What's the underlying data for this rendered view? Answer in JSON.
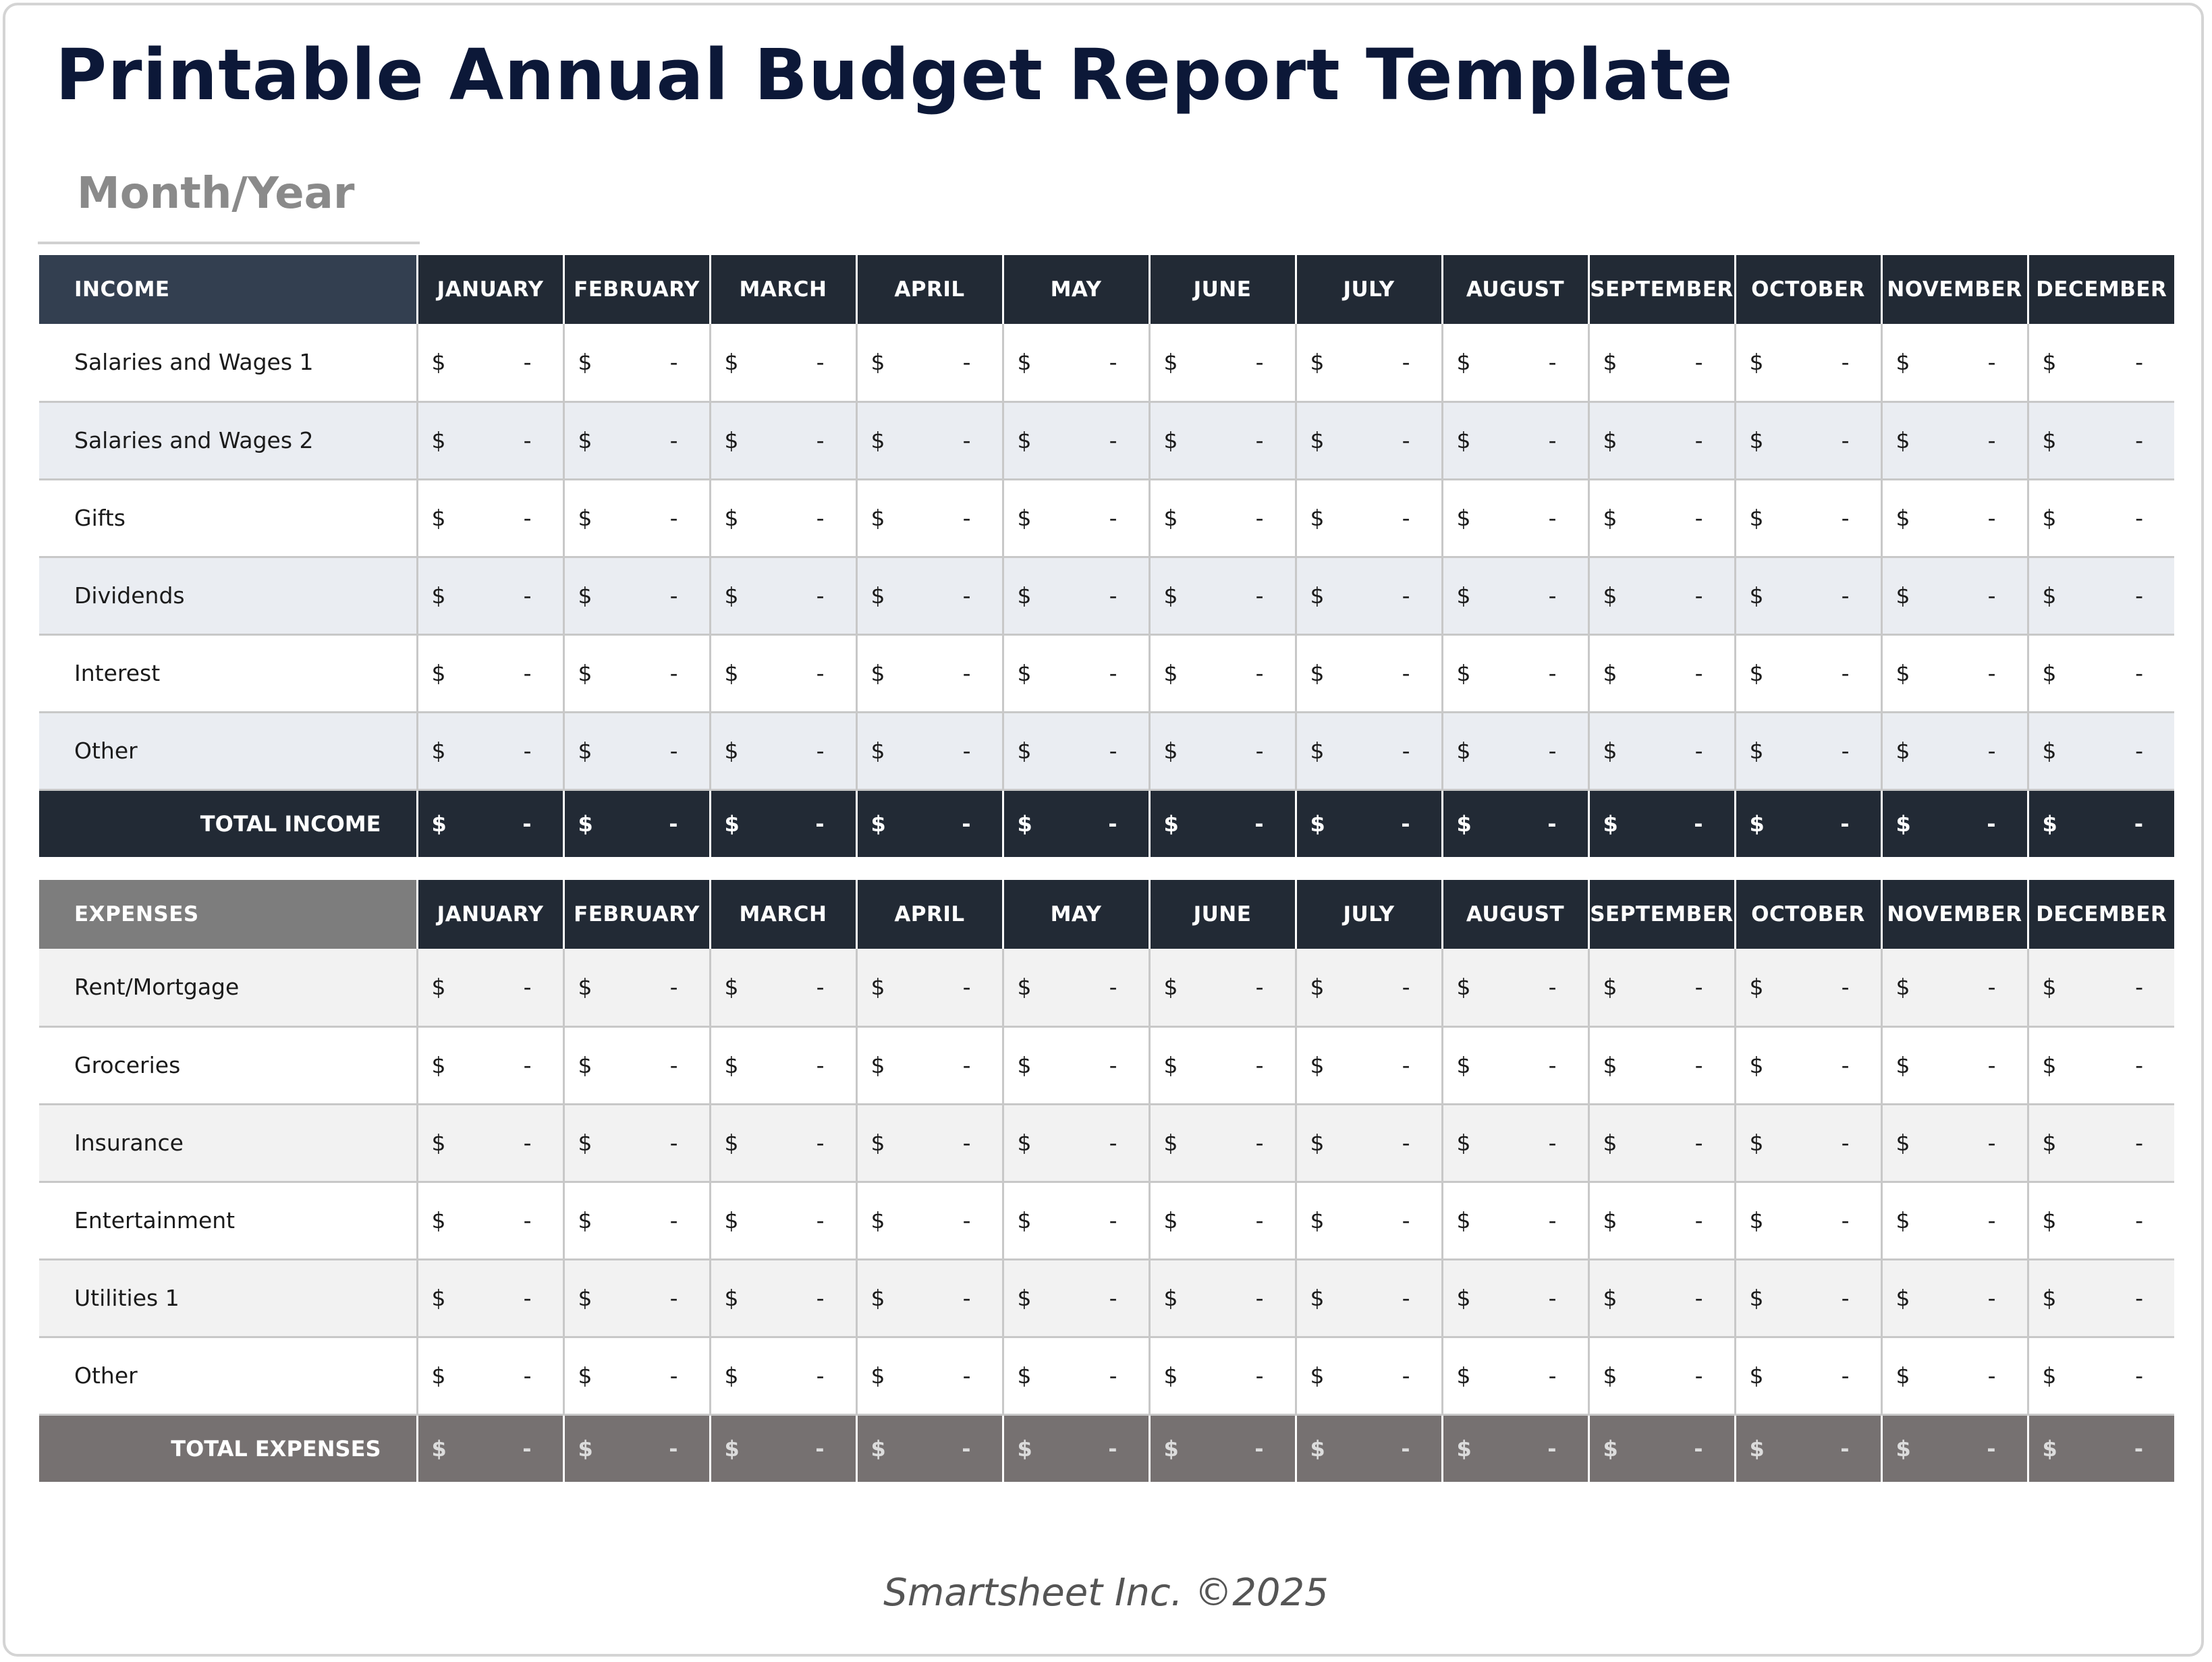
{
  "title": "Printable Annual Budget Report Template",
  "period_label": "Month/Year",
  "months": [
    "JANUARY",
    "FEBRUARY",
    "MARCH",
    "APRIL",
    "MAY",
    "JUNE",
    "JULY",
    "AUGUST",
    "SEPTEMBER",
    "OCTOBER",
    "NOVEMBER",
    "DECEMBER"
  ],
  "income": {
    "header": "INCOME",
    "rows": [
      {
        "label": "Salaries and Wages 1",
        "values": [
          "-",
          "-",
          "-",
          "-",
          "-",
          "-",
          "-",
          "-",
          "-",
          "-",
          "-",
          "-"
        ]
      },
      {
        "label": "Salaries and Wages 2",
        "values": [
          "-",
          "-",
          "-",
          "-",
          "-",
          "-",
          "-",
          "-",
          "-",
          "-",
          "-",
          "-"
        ]
      },
      {
        "label": "Gifts",
        "values": [
          "-",
          "-",
          "-",
          "-",
          "-",
          "-",
          "-",
          "-",
          "-",
          "-",
          "-",
          "-"
        ]
      },
      {
        "label": "Dividends",
        "values": [
          "-",
          "-",
          "-",
          "-",
          "-",
          "-",
          "-",
          "-",
          "-",
          "-",
          "-",
          "-"
        ]
      },
      {
        "label": "Interest",
        "values": [
          "-",
          "-",
          "-",
          "-",
          "-",
          "-",
          "-",
          "-",
          "-",
          "-",
          "-",
          "-"
        ]
      },
      {
        "label": "Other",
        "values": [
          "-",
          "-",
          "-",
          "-",
          "-",
          "-",
          "-",
          "-",
          "-",
          "-",
          "-",
          "-"
        ]
      }
    ],
    "total_label": "TOTAL INCOME",
    "total_values": [
      "-",
      "-",
      "-",
      "-",
      "-",
      "-",
      "-",
      "-",
      "-",
      "-",
      "-",
      "-"
    ]
  },
  "expenses": {
    "header": "EXPENSES",
    "rows": [
      {
        "label": "Rent/Mortgage",
        "values": [
          "-",
          "-",
          "-",
          "-",
          "-",
          "-",
          "-",
          "-",
          "-",
          "-",
          "-",
          "-"
        ]
      },
      {
        "label": "Groceries",
        "values": [
          "-",
          "-",
          "-",
          "-",
          "-",
          "-",
          "-",
          "-",
          "-",
          "-",
          "-",
          "-"
        ]
      },
      {
        "label": "Insurance",
        "values": [
          "-",
          "-",
          "-",
          "-",
          "-",
          "-",
          "-",
          "-",
          "-",
          "-",
          "-",
          "-"
        ]
      },
      {
        "label": "Entertainment",
        "values": [
          "-",
          "-",
          "-",
          "-",
          "-",
          "-",
          "-",
          "-",
          "-",
          "-",
          "-",
          "-"
        ]
      },
      {
        "label": "Utilities 1",
        "values": [
          "-",
          "-",
          "-",
          "-",
          "-",
          "-",
          "-",
          "-",
          "-",
          "-",
          "-",
          "-"
        ]
      },
      {
        "label": "Other",
        "values": [
          "-",
          "-",
          "-",
          "-",
          "-",
          "-",
          "-",
          "-",
          "-",
          "-",
          "-",
          "-"
        ]
      }
    ],
    "total_label": "TOTAL EXPENSES",
    "total_values": [
      "-",
      "-",
      "-",
      "-",
      "-",
      "-",
      "-",
      "-",
      "-",
      "-",
      "-",
      "-"
    ]
  },
  "currency_symbol": "$",
  "footer": "Smartsheet Inc. ©2025",
  "colors": {
    "title": "#0c1838",
    "income_header": "#333f50",
    "month_header": "#222a35",
    "income_total": "#222a35",
    "expenses_header": "#7d7d7d",
    "expenses_total": "#767171",
    "income_alt_row": "#eaedf2",
    "expenses_alt_row": "#f2f2f2"
  }
}
